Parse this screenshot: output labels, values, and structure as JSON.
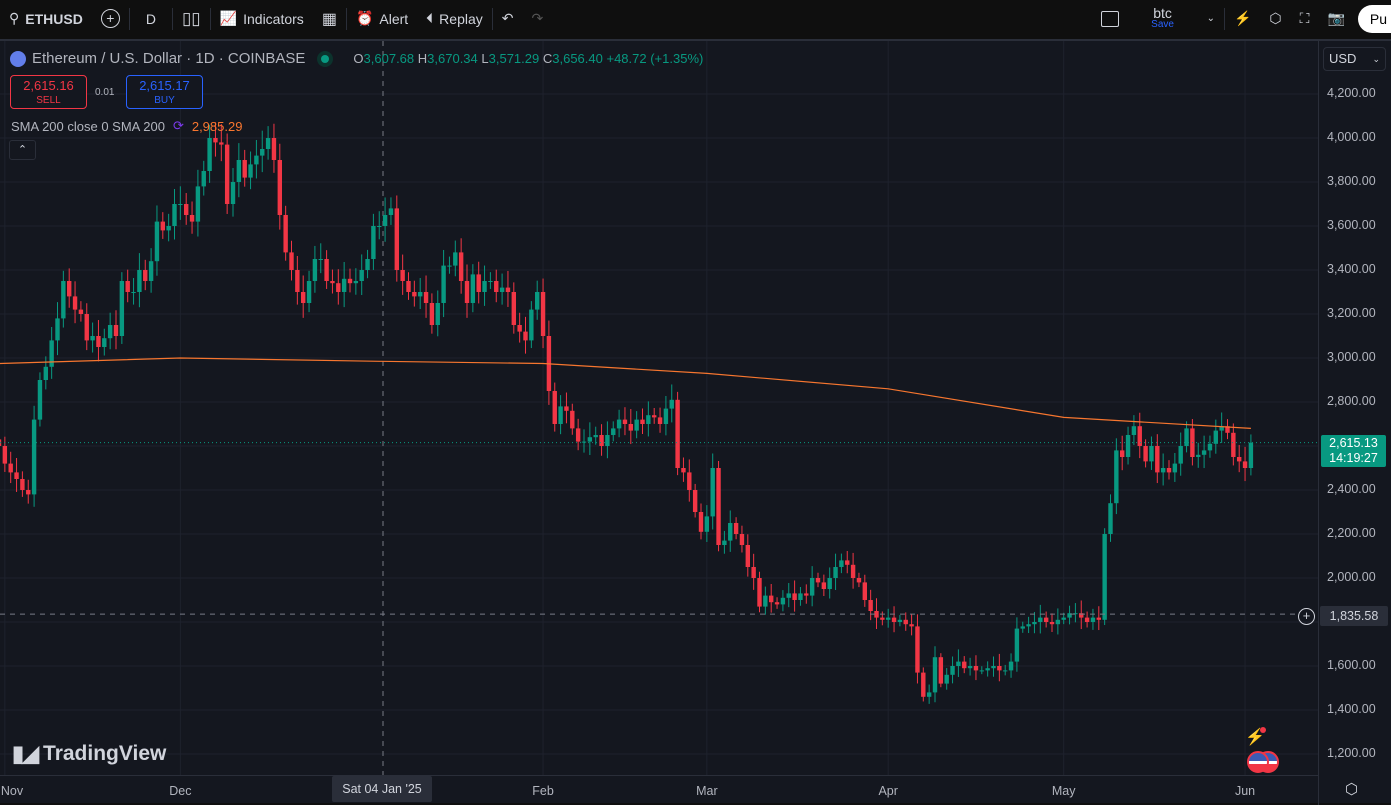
{
  "toolbar": {
    "symbol": "ETHUSD",
    "interval": "D",
    "indicators": "Indicators",
    "alert": "Alert",
    "replay": "Replay",
    "layout_name": "btc",
    "layout_save": "Save",
    "publish": "Pu"
  },
  "legend": {
    "title": "Ethereum / U.S. Dollar · 1D · COINBASE",
    "o_label": "O",
    "o": "3,607.68",
    "h_label": "H",
    "h": "3,670.34",
    "l_label": "L",
    "l": "3,571.29",
    "c_label": "C",
    "c": "3,656.40",
    "change": "+48.72 (+1.35%)"
  },
  "trade": {
    "sell_price": "2,615.16",
    "sell_label": "SELL",
    "spread": "0.01",
    "buy_price": "2,615.17",
    "buy_label": "BUY"
  },
  "indicator": {
    "label": "SMA 200 close 0 SMA 200",
    "value": "2,985.29",
    "color": "#f7762f"
  },
  "currency": "USD",
  "crosshair": {
    "date": "Sat 04 Jan '25",
    "price": "1,835.58"
  },
  "last_price": {
    "price": "2,615.13",
    "countdown": "14:19:27"
  },
  "brand": "TradingView",
  "colors": {
    "up": "#089981",
    "down": "#f23645",
    "sma": "#f7762f",
    "background": "#14171f"
  },
  "chart_data": {
    "type": "candlestick",
    "start_date": "2024-10-31",
    "interval": "1D",
    "closes": [
      2600,
      2520,
      2480,
      2450,
      2400,
      2380,
      2720,
      2900,
      2960,
      3080,
      3180,
      3350,
      3280,
      3220,
      3200,
      3080,
      3100,
      3050,
      3090,
      3150,
      3100,
      3350,
      3300,
      3300,
      3400,
      3350,
      3440,
      3620,
      3580,
      3600,
      3700,
      3700,
      3650,
      3620,
      3780,
      3850,
      4000,
      3980,
      3970,
      3700,
      3800,
      3900,
      3820,
      3880,
      3920,
      3950,
      4000,
      3900,
      3650,
      3480,
      3400,
      3300,
      3250,
      3350,
      3450,
      3450,
      3350,
      3340,
      3300,
      3360,
      3340,
      3350,
      3400,
      3450,
      3600,
      3600,
      3650,
      3680,
      3400,
      3350,
      3300,
      3280,
      3300,
      3250,
      3150,
      3250,
      3420,
      3420,
      3480,
      3350,
      3250,
      3380,
      3300,
      3350,
      3350,
      3300,
      3320,
      3300,
      3150,
      3120,
      3080,
      3220,
      3300,
      3100,
      2850,
      2700,
      2780,
      2760,
      2680,
      2620,
      2620,
      2640,
      2650,
      2600,
      2650,
      2680,
      2720,
      2700,
      2670,
      2720,
      2700,
      2740,
      2730,
      2700,
      2770,
      2810,
      2500,
      2480,
      2400,
      2300,
      2210,
      2280,
      2500,
      2150,
      2170,
      2250,
      2200,
      2150,
      2050,
      2000,
      1870,
      1920,
      1890,
      1880,
      1910,
      1930,
      1900,
      1930,
      1920,
      2000,
      1980,
      1950,
      2000,
      2050,
      2080,
      2060,
      2000,
      1980,
      1900,
      1850,
      1820,
      1810,
      1820,
      1800,
      1810,
      1790,
      1780,
      1570,
      1460,
      1480,
      1640,
      1520,
      1560,
      1600,
      1620,
      1590,
      1600,
      1580,
      1580,
      1590,
      1600,
      1580,
      1580,
      1620,
      1770,
      1780,
      1790,
      1800,
      1820,
      1800,
      1790,
      1810,
      1820,
      1840,
      1840,
      1820,
      1800,
      1820,
      1810,
      2200,
      2340,
      2580,
      2550,
      2650,
      2690,
      2600,
      2530,
      2600,
      2480,
      2500,
      2480,
      2520,
      2600,
      2680,
      2550,
      2560,
      2580,
      2610,
      2670,
      2690,
      2660,
      2550,
      2530,
      2500,
      2615.13
    ],
    "sma200": [
      {
        "date": "2024-10-31",
        "value": 2975
      },
      {
        "date": "2024-12-01",
        "value": 3000
      },
      {
        "date": "2025-01-04",
        "value": 2985
      },
      {
        "date": "2025-02-01",
        "value": 2975
      },
      {
        "date": "2025-03-01",
        "value": 2930
      },
      {
        "date": "2025-04-01",
        "value": 2860
      },
      {
        "date": "2025-05-01",
        "value": 2730
      },
      {
        "date": "2025-06-02",
        "value": 2680
      }
    ],
    "y_ticks": [
      "4,200.00",
      "4,000.00",
      "3,800.00",
      "3,600.00",
      "3,400.00",
      "3,200.00",
      "3,000.00",
      "2,800.00",
      "2,600.00",
      "2,400.00",
      "2,200.00",
      "2,000.00",
      "1,800.00",
      "1,600.00",
      "1,400.00",
      "1,200.00"
    ],
    "ylim": [
      1200,
      4200
    ],
    "x_ticks": [
      {
        "label": "Nov",
        "date": "2024-11-01"
      },
      {
        "label": "Dec",
        "date": "2024-12-01"
      },
      {
        "label": "Feb",
        "date": "2025-02-01"
      },
      {
        "label": "Mar",
        "date": "2025-03-01"
      },
      {
        "label": "Apr",
        "date": "2025-04-01"
      },
      {
        "label": "May",
        "date": "2025-05-01"
      },
      {
        "label": "Jun",
        "date": "2025-06-01"
      }
    ],
    "grid": true
  }
}
